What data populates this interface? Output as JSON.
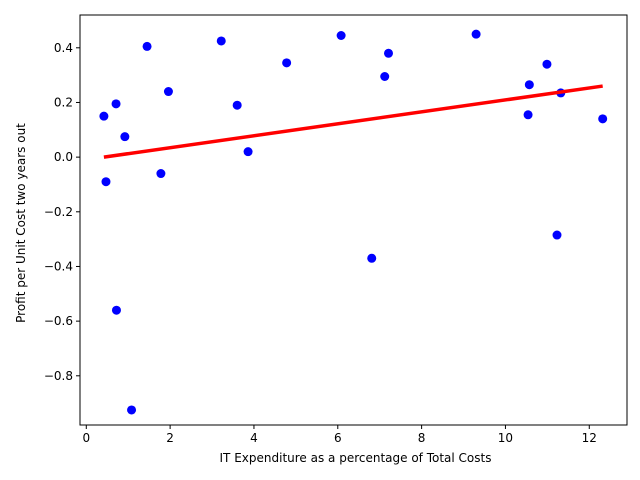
{
  "chart_data": {
    "type": "scatter",
    "xlabel": "IT Expenditure as a percentage of Total Costs",
    "ylabel": "Profit per Unit Cost two years out",
    "xlim": [
      -0.15,
      12.9
    ],
    "ylim": [
      -0.98,
      0.52
    ],
    "x_ticks": [
      0,
      2,
      4,
      6,
      8,
      10,
      12
    ],
    "x_tick_labels": [
      "0",
      "2",
      "4",
      "6",
      "8",
      "10",
      "12"
    ],
    "y_ticks": [
      0.4,
      0.2,
      0.0,
      -0.2,
      -0.4,
      -0.6,
      -0.8
    ],
    "y_tick_labels": [
      "0.4",
      "0.2",
      "0.0",
      "−0.2",
      "−0.4",
      "−0.6",
      "−0.8"
    ],
    "grid": false,
    "series": [
      {
        "kind": "points",
        "color": "#0000ff",
        "points": [
          [
            0.42,
            0.15
          ],
          [
            0.47,
            -0.09
          ],
          [
            0.71,
            0.195
          ],
          [
            0.72,
            -0.56
          ],
          [
            0.92,
            0.075
          ],
          [
            1.08,
            -0.925
          ],
          [
            1.45,
            0.405
          ],
          [
            1.78,
            -0.06
          ],
          [
            1.96,
            0.24
          ],
          [
            3.22,
            0.425
          ],
          [
            3.6,
            0.19
          ],
          [
            3.86,
            0.02
          ],
          [
            4.78,
            0.345
          ],
          [
            6.08,
            0.445
          ],
          [
            6.81,
            -0.37
          ],
          [
            7.12,
            0.295
          ],
          [
            7.21,
            0.38
          ],
          [
            9.3,
            0.45
          ],
          [
            10.54,
            0.155
          ],
          [
            10.57,
            0.265
          ],
          [
            10.99,
            0.34
          ],
          [
            11.23,
            -0.285
          ],
          [
            11.32,
            0.235
          ],
          [
            12.32,
            0.14
          ]
        ]
      },
      {
        "kind": "fit-line",
        "color": "#ff0000",
        "x": [
          0.42,
          12.32
        ],
        "y": [
          0.0,
          0.26
        ]
      }
    ]
  }
}
